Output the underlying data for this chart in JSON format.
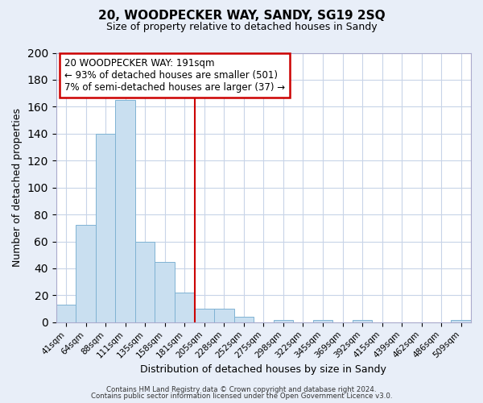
{
  "title": "20, WOODPECKER WAY, SANDY, SG19 2SQ",
  "subtitle": "Size of property relative to detached houses in Sandy",
  "xlabel": "Distribution of detached houses by size in Sandy",
  "ylabel": "Number of detached properties",
  "bin_labels": [
    "41sqm",
    "64sqm",
    "88sqm",
    "111sqm",
    "135sqm",
    "158sqm",
    "181sqm",
    "205sqm",
    "228sqm",
    "252sqm",
    "275sqm",
    "298sqm",
    "322sqm",
    "345sqm",
    "369sqm",
    "392sqm",
    "415sqm",
    "439sqm",
    "462sqm",
    "486sqm",
    "509sqm"
  ],
  "bar_heights": [
    13,
    72,
    140,
    165,
    60,
    45,
    22,
    10,
    10,
    4,
    0,
    2,
    0,
    2,
    0,
    2,
    0,
    0,
    0,
    0,
    2
  ],
  "bar_color": "#c9dff0",
  "bar_edge_color": "#7fb3d3",
  "vline_color": "#cc0000",
  "vline_index": 6.5,
  "ylim": [
    0,
    200
  ],
  "yticks": [
    0,
    20,
    40,
    60,
    80,
    100,
    120,
    140,
    160,
    180,
    200
  ],
  "annotation_title": "20 WOODPECKER WAY: 191sqm",
  "annotation_line1": "← 93% of detached houses are smaller (501)",
  "annotation_line2": "7% of semi-detached houses are larger (37) →",
  "annotation_box_color": "#ffffff",
  "annotation_box_edge": "#cc0000",
  "footer1": "Contains HM Land Registry data © Crown copyright and database right 2024.",
  "footer2": "Contains public sector information licensed under the Open Government Licence v3.0.",
  "background_color": "#e8eef8",
  "plot_bg_color": "#ffffff",
  "grid_color": "#c8d4e8"
}
